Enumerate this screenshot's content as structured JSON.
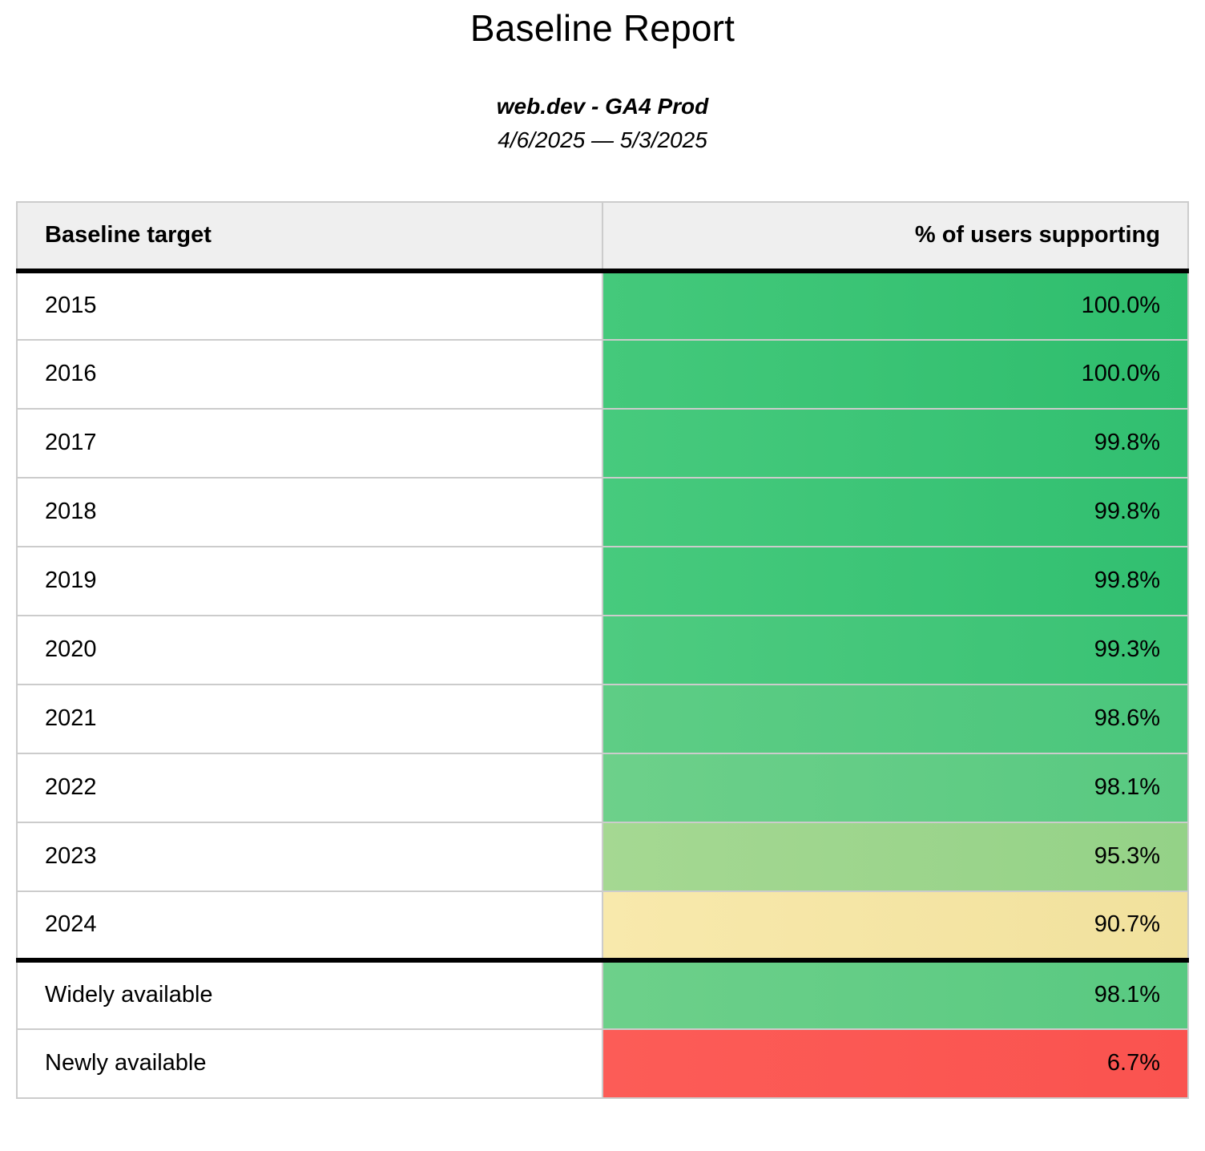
{
  "report": {
    "title": "Baseline Report",
    "subtitle": "web.dev - GA4 Prod",
    "date_range": "4/6/2025 — 5/3/2025"
  },
  "table": {
    "columns": [
      "Baseline target",
      "% of users supporting"
    ],
    "rows": [
      {
        "target": "2015",
        "value": "100.0%",
        "color_left": "#44c97b",
        "color_right": "#2ebd6d",
        "divider_above": false
      },
      {
        "target": "2016",
        "value": "100.0%",
        "color_left": "#44c97b",
        "color_right": "#2ebd6d",
        "divider_above": false
      },
      {
        "target": "2017",
        "value": "99.8%",
        "color_left": "#47ca7d",
        "color_right": "#31bf70",
        "divider_above": false
      },
      {
        "target": "2018",
        "value": "99.8%",
        "color_left": "#47ca7d",
        "color_right": "#31bf70",
        "divider_above": false
      },
      {
        "target": "2019",
        "value": "99.8%",
        "color_left": "#47ca7d",
        "color_right": "#31bf70",
        "divider_above": false
      },
      {
        "target": "2020",
        "value": "99.3%",
        "color_left": "#4ecb80",
        "color_right": "#39c274",
        "divider_above": false
      },
      {
        "target": "2021",
        "value": "98.6%",
        "color_left": "#5ecd85",
        "color_right": "#4ac67c",
        "divider_above": false
      },
      {
        "target": "2022",
        "value": "98.1%",
        "color_left": "#6dd08a",
        "color_right": "#58c981",
        "divider_above": false
      },
      {
        "target": "2023",
        "value": "95.3%",
        "color_left": "#a5d892",
        "color_right": "#94d287",
        "divider_above": false
      },
      {
        "target": "2024",
        "value": "90.7%",
        "color_left": "#f8e9ac",
        "color_right": "#f1e19d",
        "divider_above": false
      },
      {
        "target": "Widely available",
        "value": "98.1%",
        "color_left": "#6dd08a",
        "color_right": "#58c981",
        "divider_above": true
      },
      {
        "target": "Newly available",
        "value": "6.7%",
        "color_left": "#fc5c57",
        "color_right": "#fa534f",
        "divider_above": false
      }
    ]
  },
  "colors": {
    "header_bg": "#efefef",
    "border_light": "#cccccc",
    "border_heavy": "#000000",
    "text": "#000000"
  },
  "chart_data": {
    "type": "table",
    "title": "Baseline Report",
    "subtitle": "web.dev - GA4 Prod",
    "date_range": "4/6/2025 — 5/3/2025",
    "columns": [
      "Baseline target",
      "% of users supporting"
    ],
    "categories": [
      "2015",
      "2016",
      "2017",
      "2018",
      "2019",
      "2020",
      "2021",
      "2022",
      "2023",
      "2024",
      "Widely available",
      "Newly available"
    ],
    "values": [
      100.0,
      100.0,
      99.8,
      99.8,
      99.8,
      99.3,
      98.6,
      98.1,
      95.3,
      90.7,
      98.1,
      6.7
    ],
    "value_unit": "%",
    "layout_hints": {
      "value_alignment": "right",
      "section_break_after_index": 9,
      "cell_color_scale": "green (high) through yellow (~90%) to red (low), subtle light-to-dark left-to-right gradient per cell"
    }
  }
}
